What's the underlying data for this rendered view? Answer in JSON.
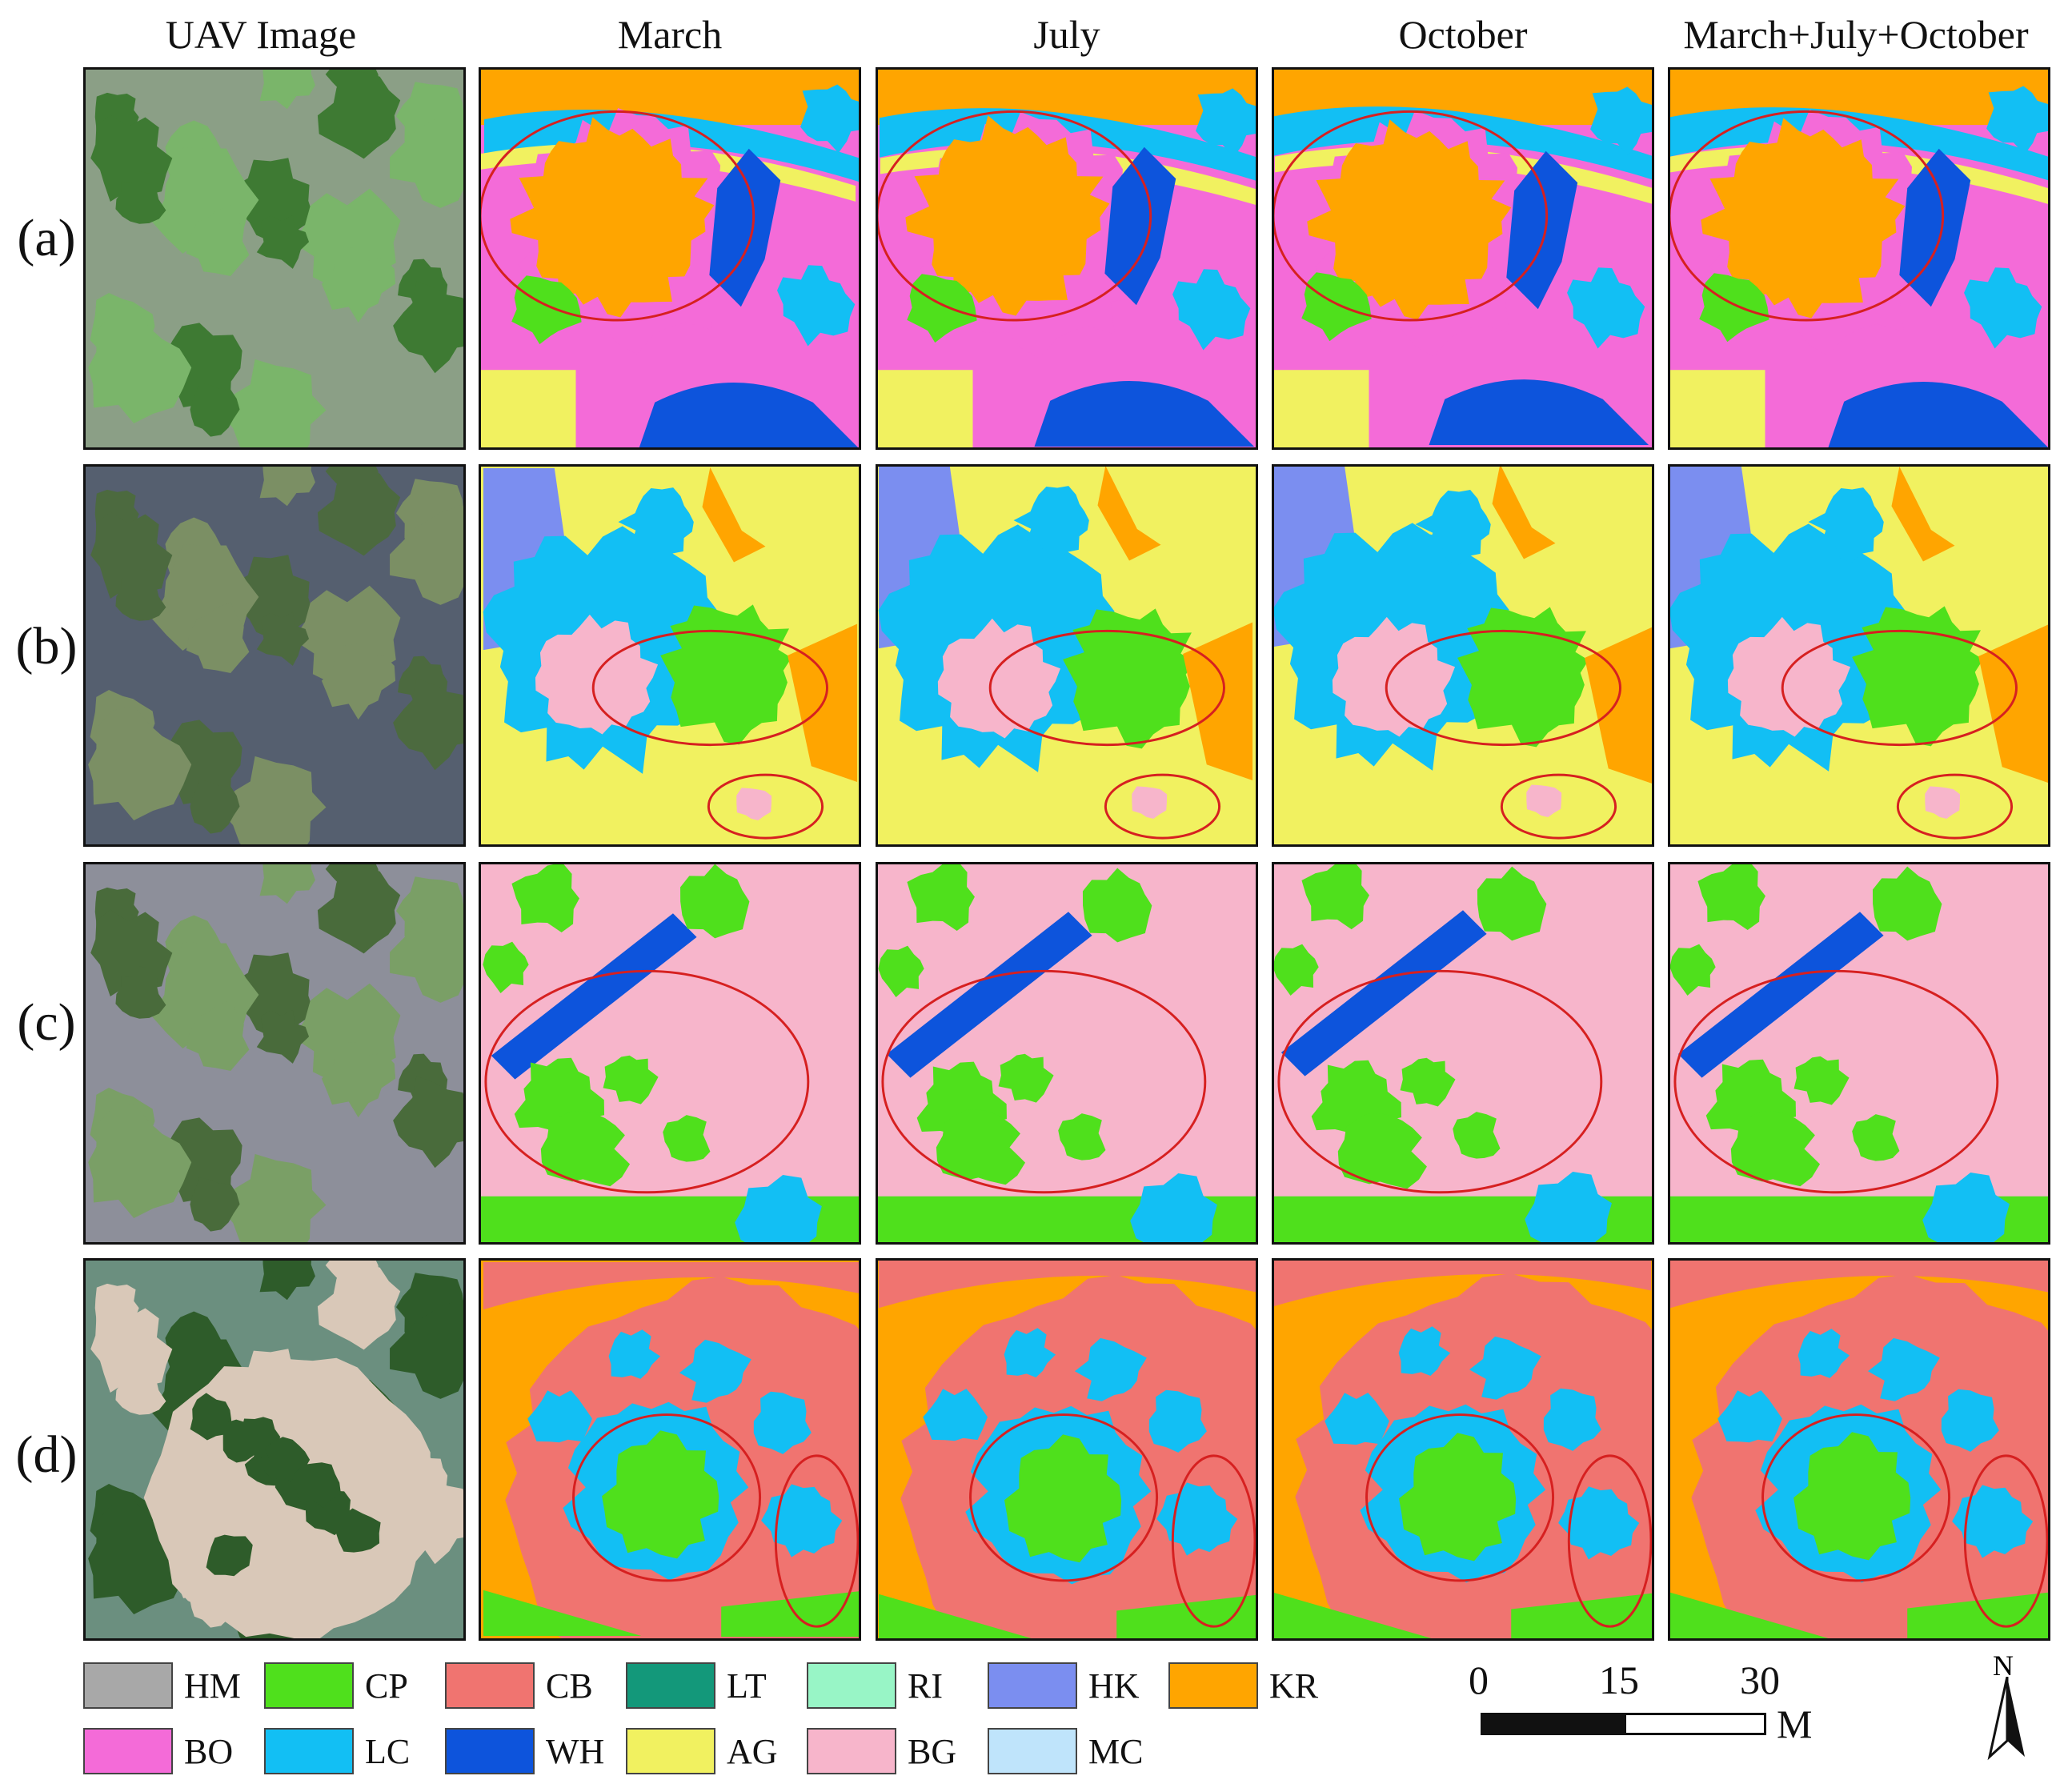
{
  "columns": [
    "UAV Image",
    "March",
    "July",
    "October",
    "March+July+October"
  ],
  "rows": [
    "(a)",
    "(b)",
    "(c)",
    "(d)"
  ],
  "legend": [
    {
      "code": "HM",
      "color": "#a8a8a8"
    },
    {
      "code": "CP",
      "color": "#4fe01c"
    },
    {
      "code": "CB",
      "color": "#f07470"
    },
    {
      "code": "LT",
      "color": "#13987a"
    },
    {
      "code": "RI",
      "color": "#98f5c6"
    },
    {
      "code": "HK",
      "color": "#7b8ef0"
    },
    {
      "code": "KR",
      "color": "#ffa500"
    },
    {
      "code": "BO",
      "color": "#f46bd8"
    },
    {
      "code": "LC",
      "color": "#12bff4"
    },
    {
      "code": "WH",
      "color": "#0d54dc"
    },
    {
      "code": "AG",
      "color": "#f1f160"
    },
    {
      "code": "BG",
      "color": "#f7b5cb"
    },
    {
      "code": "MC",
      "color": "#bfe4fb"
    }
  ],
  "scale_bar": {
    "ticks": [
      "0",
      "15",
      "30"
    ],
    "unit": "M"
  },
  "north_arrow": {
    "label": "N"
  },
  "ellipse_color": "#d62020"
}
